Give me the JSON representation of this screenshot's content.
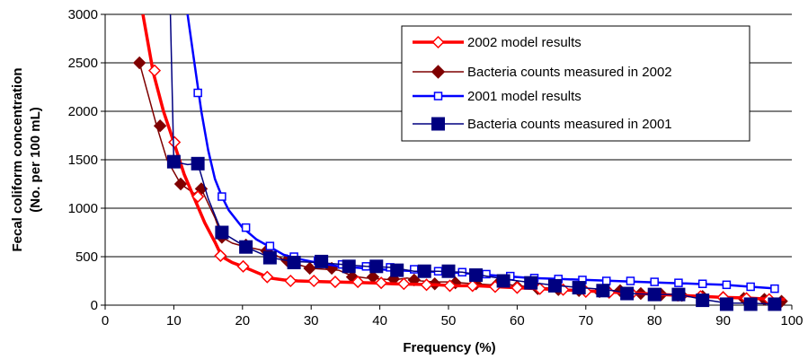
{
  "chart_data": {
    "type": "line",
    "title": "",
    "xlabel": "Frequency (%)",
    "ylabel_lines": [
      "Fecal coliform concentration",
      "(No. per 100 mL)"
    ],
    "xlim": [
      0,
      100
    ],
    "ylim": [
      0,
      3000
    ],
    "xticks": [
      0,
      10,
      20,
      30,
      40,
      50,
      60,
      70,
      80,
      90,
      100
    ],
    "yticks": [
      0,
      500,
      1000,
      1500,
      2000,
      2500,
      3000
    ],
    "grid": "horizontal",
    "legend_position": "top-right",
    "series": [
      {
        "name": "2002 model results",
        "color": "#ff0000",
        "marker": "open-diamond",
        "line_style": "thick",
        "x": [
          5.5,
          7,
          8.5,
          10,
          11.5,
          13,
          14.5,
          16,
          17,
          18.5,
          20,
          22,
          24,
          26,
          28,
          30,
          33,
          36,
          39,
          42,
          45,
          48,
          51,
          54,
          57,
          60,
          63,
          66,
          69,
          72,
          75,
          78,
          81,
          84,
          87,
          90,
          93,
          96,
          99
        ],
        "values": [
          3000,
          2400,
          2000,
          1680,
          1350,
          1100,
          850,
          650,
          500,
          440,
          400,
          340,
          280,
          260,
          250,
          245,
          240,
          235,
          230,
          220,
          215,
          210,
          200,
          200,
          190,
          180,
          170,
          160,
          150,
          140,
          130,
          120,
          110,
          100,
          90,
          80,
          75,
          65,
          60
        ],
        "marker_x": [
          7.2,
          10.1,
          13.5,
          16.8,
          20.1,
          23.6,
          27,
          30.4,
          33.5,
          36.8,
          40.2,
          43.5,
          46.8,
          50.2,
          53.5,
          56.8,
          60,
          63.3,
          66.7,
          70,
          73.4,
          76.7,
          80,
          83.4,
          86.7,
          90,
          93.4,
          96.7
        ],
        "marker_values": [
          2420,
          1680,
          1120,
          510,
          400,
          290,
          250,
          250,
          240,
          240,
          230,
          220,
          210,
          200,
          200,
          190,
          180,
          170,
          160,
          140,
          130,
          120,
          110,
          100,
          90,
          80,
          70,
          60
        ]
      },
      {
        "name": "Bacteria counts measured in 2002",
        "color": "#7f0000",
        "marker": "filled-diamond",
        "line_style": "thin",
        "x": [
          5,
          7.5,
          9,
          11,
          13,
          14,
          16,
          17,
          18.5,
          20,
          22,
          24,
          26,
          28,
          30,
          32,
          34,
          36,
          38,
          40,
          42,
          44,
          46,
          48,
          50,
          52,
          54,
          56,
          58,
          60,
          62,
          64,
          66,
          68,
          70,
          72,
          74,
          76,
          78,
          80,
          82,
          84,
          86,
          88,
          90,
          92,
          94,
          96,
          98
        ],
        "values": [
          2500,
          1850,
          1500,
          1250,
          1150,
          1200,
          900,
          700,
          640,
          610,
          580,
          550,
          470,
          420,
          380,
          370,
          360,
          300,
          280,
          270,
          260,
          280,
          250,
          240,
          240,
          230,
          220,
          210,
          220,
          200,
          190,
          180,
          170,
          160,
          150,
          140,
          150,
          140,
          130,
          120,
          110,
          100,
          90,
          85,
          80,
          70,
          65,
          55,
          45
        ],
        "marker_x": [
          5,
          8,
          11,
          14,
          17,
          20.5,
          23.5,
          26.5,
          29.8,
          33,
          36,
          39,
          42,
          45,
          48,
          51,
          54,
          57,
          60,
          63,
          66,
          69,
          72,
          75,
          78,
          81,
          84,
          87,
          90,
          93,
          96,
          98.5
        ],
        "marker_values": [
          2500,
          1850,
          1250,
          1200,
          700,
          620,
          560,
          460,
          380,
          380,
          290,
          290,
          270,
          260,
          220,
          230,
          220,
          210,
          190,
          170,
          160,
          150,
          140,
          150,
          120,
          110,
          100,
          90,
          80,
          70,
          60,
          40
        ]
      },
      {
        "name": "2001 model results",
        "color": "#0000ff",
        "marker": "open-square",
        "line_style": "medium",
        "x": [
          12,
          13,
          14,
          15,
          16,
          17,
          18,
          20,
          22,
          24,
          26,
          28,
          30,
          34,
          38,
          42,
          46,
          50,
          54,
          58,
          62,
          66,
          70,
          74,
          78,
          82,
          86,
          90,
          94,
          98
        ],
        "values": [
          3000,
          2500,
          2000,
          1600,
          1300,
          1120,
          980,
          800,
          680,
          600,
          520,
          480,
          450,
          400,
          380,
          360,
          350,
          340,
          320,
          300,
          280,
          270,
          260,
          250,
          240,
          230,
          220,
          210,
          190,
          170
        ],
        "marker_x": [
          13.5,
          17,
          20.5,
          24,
          27.5,
          31,
          34.5,
          38,
          41.5,
          45,
          48.5,
          52,
          55.5,
          59,
          62.5,
          66,
          69.5,
          73,
          76.5,
          80,
          83.5,
          87,
          90.5,
          94,
          97.5
        ],
        "marker_values": [
          2190,
          1120,
          800,
          610,
          500,
          460,
          420,
          400,
          390,
          370,
          350,
          340,
          320,
          300,
          280,
          270,
          260,
          250,
          250,
          240,
          230,
          220,
          210,
          190,
          170
        ]
      },
      {
        "name": "Bacteria counts measured in 2001",
        "color": "#000080",
        "marker": "filled-square",
        "line_style": "thin",
        "x": [
          9.5,
          10,
          12,
          13.5,
          15,
          17,
          20.5,
          24,
          27.5,
          31,
          34.5,
          38,
          41.5,
          45,
          48.5,
          52,
          55.5,
          59,
          62.5,
          66,
          69.5,
          73,
          76.5,
          80,
          83.5,
          87,
          90.5,
          94,
          97.5
        ],
        "values": [
          3000,
          1480,
          1450,
          1460,
          1100,
          750,
          600,
          490,
          450,
          440,
          420,
          400,
          390,
          350,
          350,
          340,
          300,
          260,
          230,
          200,
          180,
          160,
          120,
          110,
          110,
          60,
          20,
          20,
          10
        ],
        "marker_x": [
          10,
          13.5,
          17,
          20.5,
          24,
          27.5,
          31.5,
          35.5,
          39.5,
          42.5,
          46.5,
          50,
          54,
          58,
          62,
          65.5,
          69,
          72.5,
          76,
          80,
          83.5,
          87,
          90.5,
          94,
          97.5
        ],
        "marker_values": [
          1480,
          1460,
          750,
          600,
          490,
          440,
          450,
          400,
          400,
          360,
          350,
          350,
          310,
          250,
          230,
          200,
          180,
          150,
          120,
          110,
          110,
          50,
          10,
          10,
          10
        ]
      }
    ]
  }
}
